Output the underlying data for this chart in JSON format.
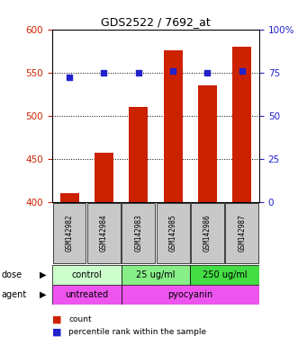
{
  "title": "GDS2522 / 7692_at",
  "samples": [
    "GSM142982",
    "GSM142984",
    "GSM142983",
    "GSM142985",
    "GSM142986",
    "GSM142987"
  ],
  "bar_values": [
    410,
    457,
    510,
    576,
    535,
    580
  ],
  "dot_values": [
    72,
    75,
    75,
    76,
    75,
    76
  ],
  "ylim_left": [
    400,
    600
  ],
  "ylim_right": [
    0,
    100
  ],
  "yticks_left": [
    400,
    450,
    500,
    550,
    600
  ],
  "yticks_right": [
    0,
    25,
    50,
    75,
    100
  ],
  "bar_color": "#cc2200",
  "dot_color": "#2222cc",
  "dose_groups": [
    {
      "label": "control",
      "span": [
        0,
        2
      ],
      "color": "#ccffcc"
    },
    {
      "label": "25 ug/ml",
      "span": [
        2,
        4
      ],
      "color": "#88ee88"
    },
    {
      "label": "250 ug/ml",
      "span": [
        4,
        6
      ],
      "color": "#44dd44"
    }
  ],
  "agent_groups": [
    {
      "label": "untreated",
      "span": [
        0,
        2
      ],
      "color": "#ee55ee"
    },
    {
      "label": "pyocyanin",
      "span": [
        2,
        6
      ],
      "color": "#ee55ee"
    }
  ],
  "dose_label": "dose",
  "agent_label": "agent",
  "legend_count": "count",
  "legend_pct": "percentile rank within the sample",
  "left_tick_color": "#cc2200",
  "right_tick_color": "#2222cc",
  "bar_width": 0.55
}
